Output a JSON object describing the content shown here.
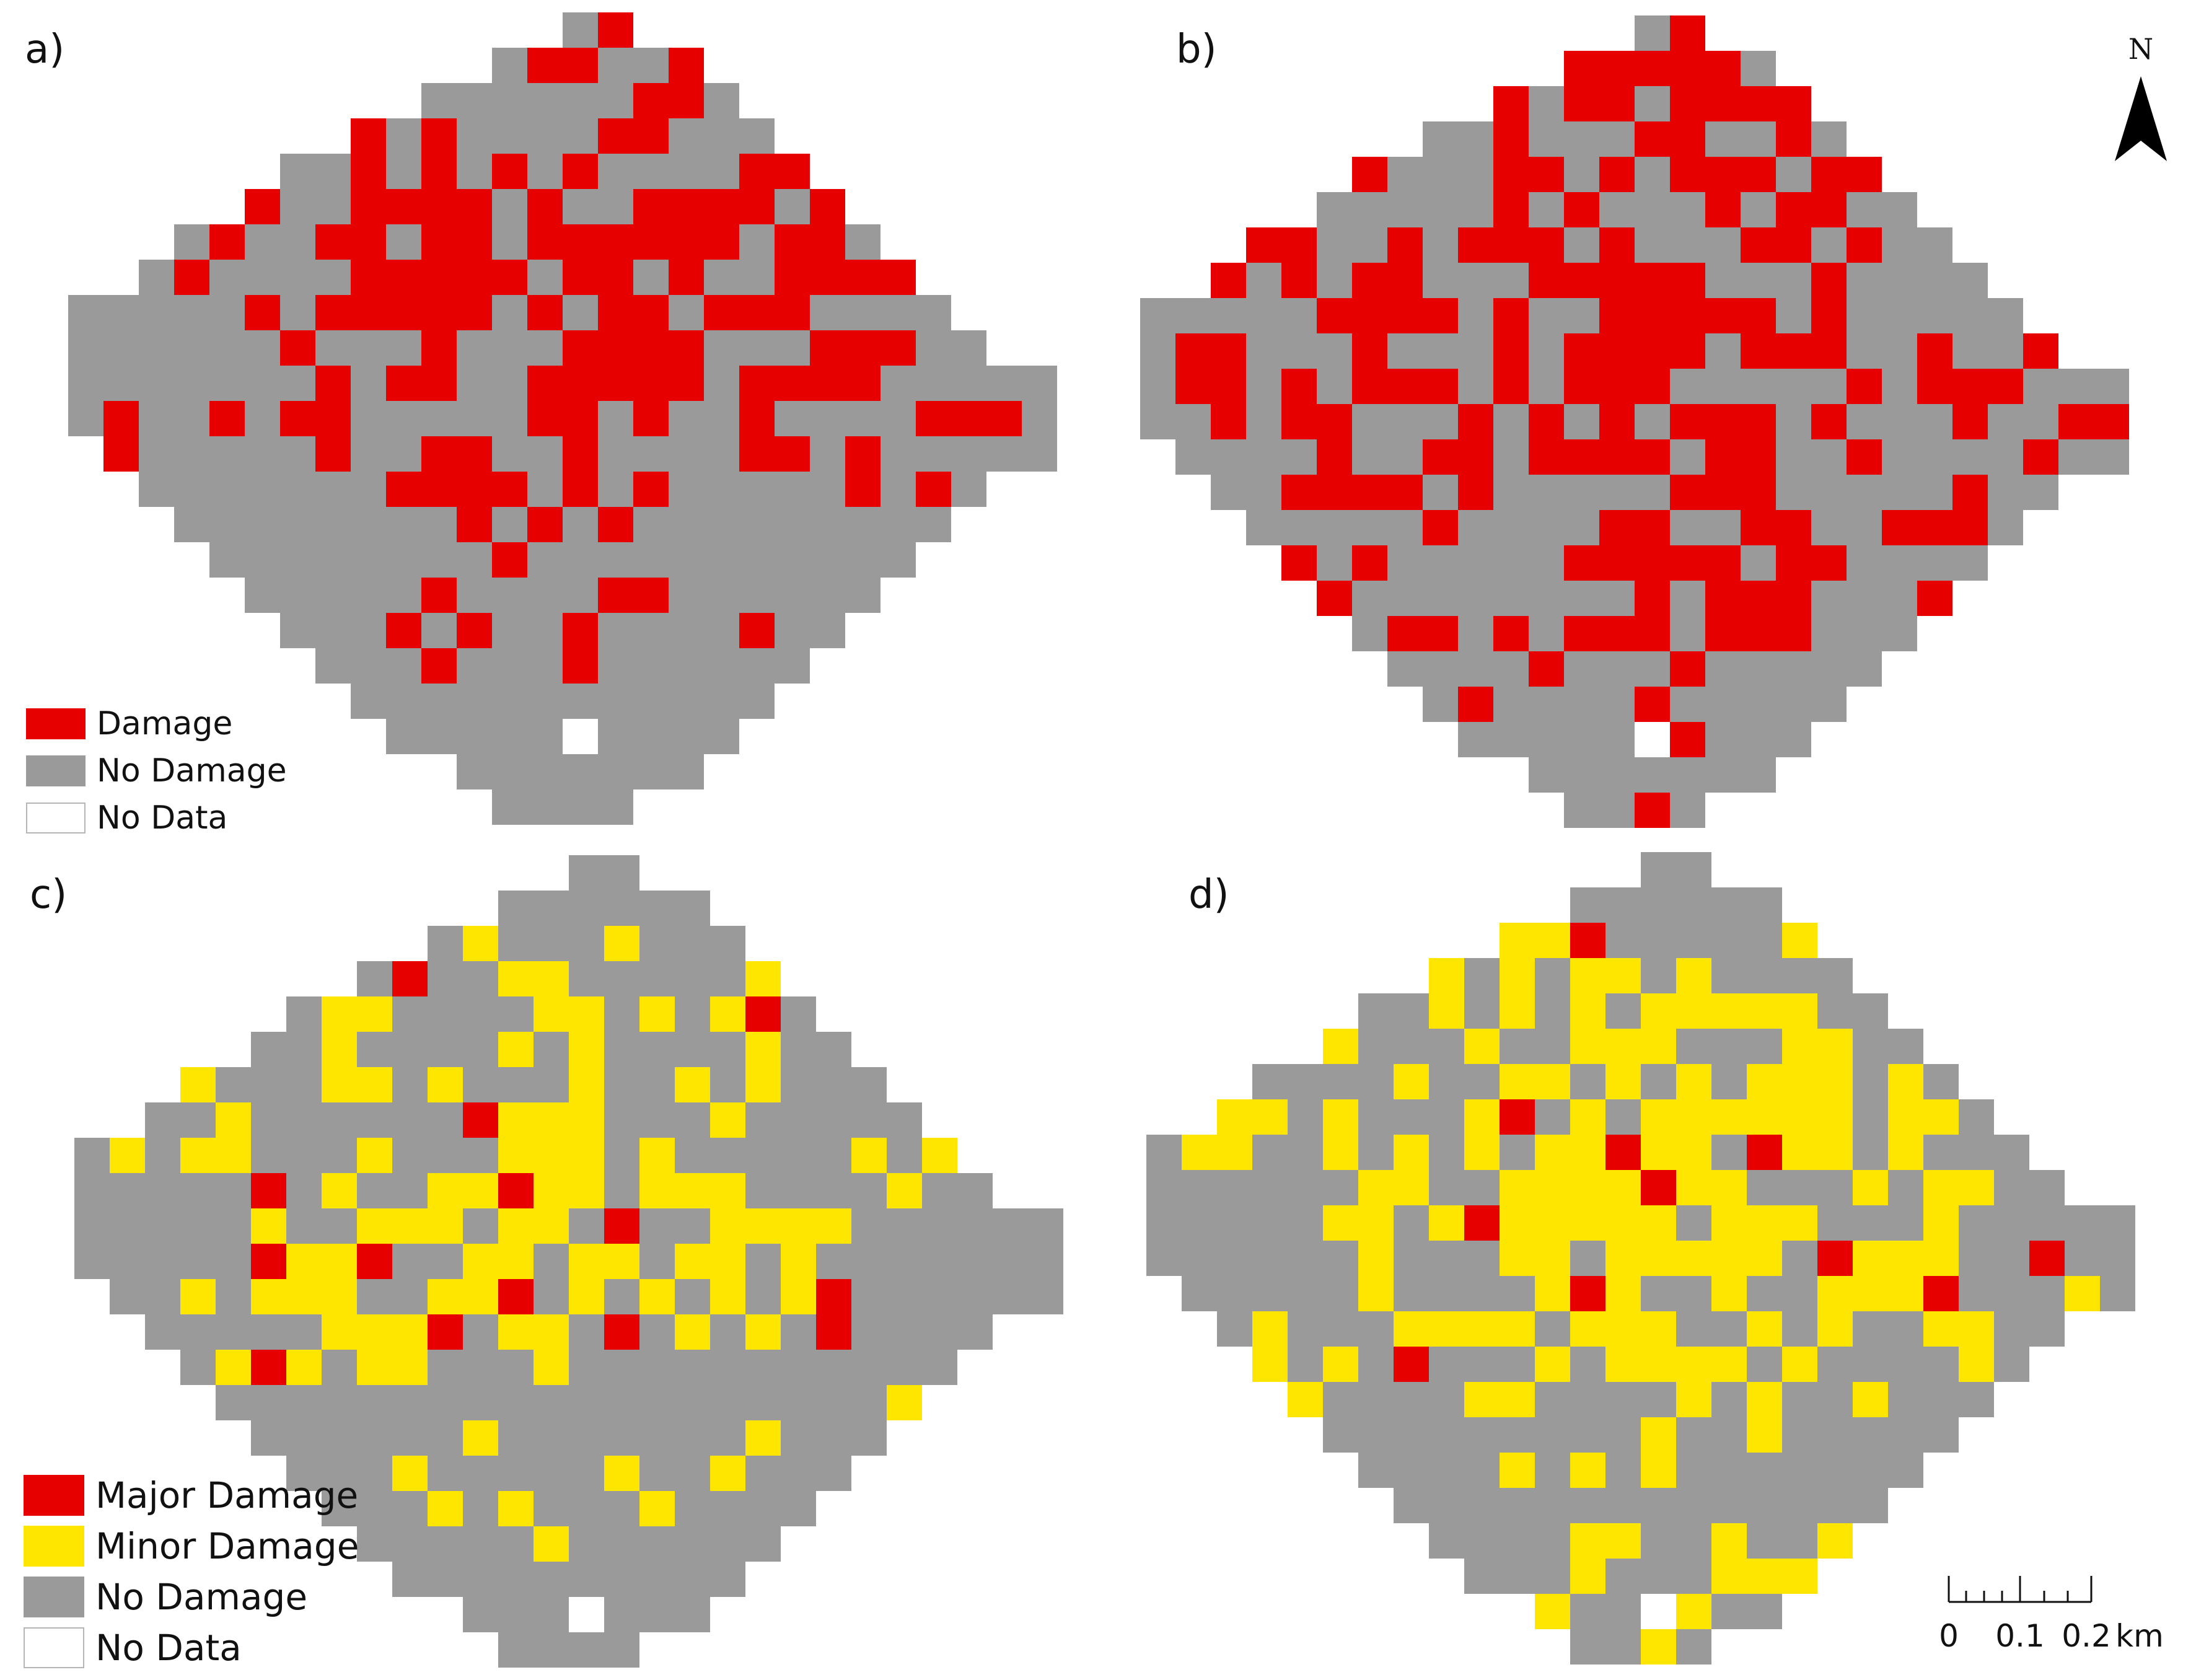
{
  "colors": {
    "damage": "#e60000",
    "minor_damage": "#ffe600",
    "no_damage": "#9a9a9a",
    "no_data": "#ffffff",
    "text": "#111111"
  },
  "panels": [
    {
      "id": "a",
      "label": "a)"
    },
    {
      "id": "b",
      "label": "b)"
    },
    {
      "id": "c",
      "label": "c)"
    },
    {
      "id": "d",
      "label": "d)"
    }
  ],
  "legend_binary": {
    "items": [
      {
        "label": "Damage",
        "color": "#e60000"
      },
      {
        "label": "No Damage",
        "color": "#9a9a9a"
      },
      {
        "label": "No Data",
        "color": "#ffffff"
      }
    ]
  },
  "legend_graded": {
    "items": [
      {
        "label": "Major Damage",
        "color": "#e60000"
      },
      {
        "label": "Minor Damage",
        "color": "#ffe600"
      },
      {
        "label": "No Damage",
        "color": "#9a9a9a"
      },
      {
        "label": "No Data",
        "color": "#ffffff"
      }
    ]
  },
  "north_arrow": {
    "label": "N",
    "icon": "north-arrow-icon"
  },
  "scale_bar": {
    "ticks": [
      "0",
      "0.1",
      "0.2"
    ],
    "unit": "km"
  }
}
